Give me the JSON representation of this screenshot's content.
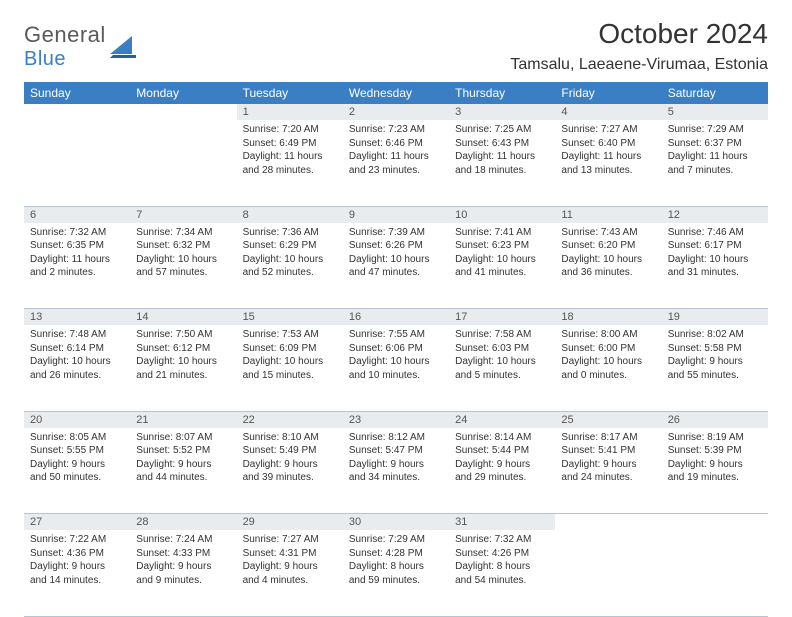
{
  "logo": {
    "text1": "General",
    "text2": "Blue"
  },
  "title": "October 2024",
  "location": "Tamsalu, Laeaene-Virumaa, Estonia",
  "colors": {
    "header_blue": "#3a7fc4",
    "daynum_bg": "#e8ecef",
    "border": "#b8c4d0"
  },
  "daysOfWeek": [
    "Sunday",
    "Monday",
    "Tuesday",
    "Wednesday",
    "Thursday",
    "Friday",
    "Saturday"
  ],
  "weeks": [
    [
      null,
      null,
      {
        "n": "1",
        "sunrise": "7:20 AM",
        "sunset": "6:49 PM",
        "daylight": "11 hours and 28 minutes."
      },
      {
        "n": "2",
        "sunrise": "7:23 AM",
        "sunset": "6:46 PM",
        "daylight": "11 hours and 23 minutes."
      },
      {
        "n": "3",
        "sunrise": "7:25 AM",
        "sunset": "6:43 PM",
        "daylight": "11 hours and 18 minutes."
      },
      {
        "n": "4",
        "sunrise": "7:27 AM",
        "sunset": "6:40 PM",
        "daylight": "11 hours and 13 minutes."
      },
      {
        "n": "5",
        "sunrise": "7:29 AM",
        "sunset": "6:37 PM",
        "daylight": "11 hours and 7 minutes."
      }
    ],
    [
      {
        "n": "6",
        "sunrise": "7:32 AM",
        "sunset": "6:35 PM",
        "daylight": "11 hours and 2 minutes."
      },
      {
        "n": "7",
        "sunrise": "7:34 AM",
        "sunset": "6:32 PM",
        "daylight": "10 hours and 57 minutes."
      },
      {
        "n": "8",
        "sunrise": "7:36 AM",
        "sunset": "6:29 PM",
        "daylight": "10 hours and 52 minutes."
      },
      {
        "n": "9",
        "sunrise": "7:39 AM",
        "sunset": "6:26 PM",
        "daylight": "10 hours and 47 minutes."
      },
      {
        "n": "10",
        "sunrise": "7:41 AM",
        "sunset": "6:23 PM",
        "daylight": "10 hours and 41 minutes."
      },
      {
        "n": "11",
        "sunrise": "7:43 AM",
        "sunset": "6:20 PM",
        "daylight": "10 hours and 36 minutes."
      },
      {
        "n": "12",
        "sunrise": "7:46 AM",
        "sunset": "6:17 PM",
        "daylight": "10 hours and 31 minutes."
      }
    ],
    [
      {
        "n": "13",
        "sunrise": "7:48 AM",
        "sunset": "6:14 PM",
        "daylight": "10 hours and 26 minutes."
      },
      {
        "n": "14",
        "sunrise": "7:50 AM",
        "sunset": "6:12 PM",
        "daylight": "10 hours and 21 minutes."
      },
      {
        "n": "15",
        "sunrise": "7:53 AM",
        "sunset": "6:09 PM",
        "daylight": "10 hours and 15 minutes."
      },
      {
        "n": "16",
        "sunrise": "7:55 AM",
        "sunset": "6:06 PM",
        "daylight": "10 hours and 10 minutes."
      },
      {
        "n": "17",
        "sunrise": "7:58 AM",
        "sunset": "6:03 PM",
        "daylight": "10 hours and 5 minutes."
      },
      {
        "n": "18",
        "sunrise": "8:00 AM",
        "sunset": "6:00 PM",
        "daylight": "10 hours and 0 minutes."
      },
      {
        "n": "19",
        "sunrise": "8:02 AM",
        "sunset": "5:58 PM",
        "daylight": "9 hours and 55 minutes."
      }
    ],
    [
      {
        "n": "20",
        "sunrise": "8:05 AM",
        "sunset": "5:55 PM",
        "daylight": "9 hours and 50 minutes."
      },
      {
        "n": "21",
        "sunrise": "8:07 AM",
        "sunset": "5:52 PM",
        "daylight": "9 hours and 44 minutes."
      },
      {
        "n": "22",
        "sunrise": "8:10 AM",
        "sunset": "5:49 PM",
        "daylight": "9 hours and 39 minutes."
      },
      {
        "n": "23",
        "sunrise": "8:12 AM",
        "sunset": "5:47 PM",
        "daylight": "9 hours and 34 minutes."
      },
      {
        "n": "24",
        "sunrise": "8:14 AM",
        "sunset": "5:44 PM",
        "daylight": "9 hours and 29 minutes."
      },
      {
        "n": "25",
        "sunrise": "8:17 AM",
        "sunset": "5:41 PM",
        "daylight": "9 hours and 24 minutes."
      },
      {
        "n": "26",
        "sunrise": "8:19 AM",
        "sunset": "5:39 PM",
        "daylight": "9 hours and 19 minutes."
      }
    ],
    [
      {
        "n": "27",
        "sunrise": "7:22 AM",
        "sunset": "4:36 PM",
        "daylight": "9 hours and 14 minutes."
      },
      {
        "n": "28",
        "sunrise": "7:24 AM",
        "sunset": "4:33 PM",
        "daylight": "9 hours and 9 minutes."
      },
      {
        "n": "29",
        "sunrise": "7:27 AM",
        "sunset": "4:31 PM",
        "daylight": "9 hours and 4 minutes."
      },
      {
        "n": "30",
        "sunrise": "7:29 AM",
        "sunset": "4:28 PM",
        "daylight": "8 hours and 59 minutes."
      },
      {
        "n": "31",
        "sunrise": "7:32 AM",
        "sunset": "4:26 PM",
        "daylight": "8 hours and 54 minutes."
      },
      null,
      null
    ]
  ],
  "labels": {
    "sunrise": "Sunrise:",
    "sunset": "Sunset:",
    "daylight": "Daylight:"
  }
}
